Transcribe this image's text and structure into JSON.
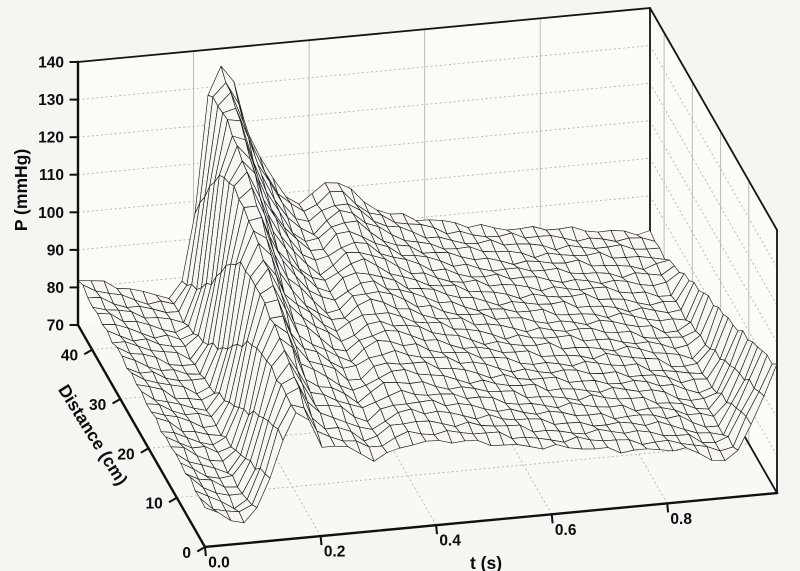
{
  "page": {
    "background": "#f5f5f2"
  },
  "chart_data": {
    "type": "surface",
    "wireframe": true,
    "title": "",
    "xlabel": "t (s)",
    "ylabel": "Distance (cm)",
    "zlabel": "P (mmHg)",
    "x_range": [
      0,
      0.99
    ],
    "y_range": [
      0,
      45
    ],
    "z_range": [
      70,
      140
    ],
    "x_ticks": [
      0,
      0.2,
      0.4,
      0.6,
      0.8
    ],
    "x_tick_labels": [
      "0.0",
      "0.2",
      "0.4",
      "0.6",
      "0.8"
    ],
    "y_ticks": [
      0,
      10,
      20,
      30,
      40
    ],
    "y_tick_labels": [
      "0",
      "10",
      "20",
      "30",
      "40"
    ],
    "z_ticks": [
      70,
      80,
      90,
      100,
      110,
      120,
      130,
      140
    ],
    "z_tick_labels": [
      "70",
      "80",
      "90",
      "100",
      "110",
      "120",
      "130",
      "140"
    ],
    "grid": true,
    "legend": false,
    "mesh": {
      "cols": 45,
      "rows": 27,
      "noise_mmHg": 0.9
    },
    "colors": {
      "mesh_line": "#1a1a1a",
      "cell_fill": "#f7f6f2",
      "grid_line": "#b4b4af",
      "edge": "#141414",
      "axis": "#101010",
      "text": "#0c0c0c",
      "wall_fill": "#fbfbf8",
      "floor_fill": "#f8f8f4"
    },
    "series": [
      {
        "distance_cm": 0,
        "points": [
          [
            0,
            80.5
          ],
          [
            0.045,
            76.3
          ],
          [
            0.075,
            75.6
          ],
          [
            0.105,
            84.0
          ],
          [
            0.135,
            97.0
          ],
          [
            0.163,
            104.0
          ],
          [
            0.205,
            94.0
          ],
          [
            0.25,
            92.5
          ],
          [
            0.295,
            89.0
          ],
          [
            0.35,
            92.5
          ],
          [
            0.5,
            90.3
          ],
          [
            0.62,
            87.3
          ],
          [
            0.74,
            85.2
          ],
          [
            0.84,
            83.2
          ],
          [
            0.905,
            79.8
          ],
          [
            0.95,
            91.0
          ],
          [
            0.99,
            103.5
          ]
        ]
      },
      {
        "distance_cm": 5,
        "points": [
          [
            0,
            80.7
          ],
          [
            0.055,
            76.3
          ],
          [
            0.085,
            75.6
          ],
          [
            0.115,
            84.4
          ],
          [
            0.145,
            99.5
          ],
          [
            0.173,
            106.5
          ],
          [
            0.215,
            95.6
          ],
          [
            0.26,
            93.7
          ],
          [
            0.305,
            89.9
          ],
          [
            0.36,
            93.6
          ],
          [
            0.5,
            90.8
          ],
          [
            0.62,
            87.4
          ],
          [
            0.74,
            85.2
          ],
          [
            0.84,
            83.2
          ],
          [
            0.915,
            79.8
          ],
          [
            0.955,
            89.5
          ],
          [
            0.99,
            100.8
          ]
        ]
      },
      {
        "distance_cm": 10,
        "points": [
          [
            0,
            80.9
          ],
          [
            0.065,
            76.3
          ],
          [
            0.095,
            75.6
          ],
          [
            0.125,
            84.9
          ],
          [
            0.155,
            102.5
          ],
          [
            0.183,
            109.5
          ],
          [
            0.225,
            97.7
          ],
          [
            0.27,
            94.9
          ],
          [
            0.315,
            90.8
          ],
          [
            0.37,
            94.6
          ],
          [
            0.5,
            91.3
          ],
          [
            0.62,
            87.6
          ],
          [
            0.74,
            85.2
          ],
          [
            0.84,
            83.2
          ],
          [
            0.925,
            79.8
          ],
          [
            0.96,
            87.5
          ],
          [
            0.99,
            98.0
          ]
        ]
      },
      {
        "distance_cm": 15,
        "points": [
          [
            0,
            81.1
          ],
          [
            0.075,
            76.3
          ],
          [
            0.105,
            75.6
          ],
          [
            0.135,
            85.3
          ],
          [
            0.165,
            106.0
          ],
          [
            0.193,
            113.0
          ],
          [
            0.235,
            100.3
          ],
          [
            0.28,
            96.2
          ],
          [
            0.325,
            91.7
          ],
          [
            0.38,
            95.7
          ],
          [
            0.5,
            91.9
          ],
          [
            0.62,
            87.7
          ],
          [
            0.74,
            85.2
          ],
          [
            0.84,
            83.2
          ],
          [
            0.935,
            79.8
          ],
          [
            0.965,
            85.5
          ],
          [
            0.99,
            95.0
          ]
        ]
      },
      {
        "distance_cm": 20,
        "points": [
          [
            0,
            81.3
          ],
          [
            0.085,
            76.3
          ],
          [
            0.115,
            75.6
          ],
          [
            0.145,
            85.8
          ],
          [
            0.175,
            109.5
          ],
          [
            0.203,
            116.5
          ],
          [
            0.245,
            102.9
          ],
          [
            0.29,
            97.4
          ],
          [
            0.335,
            92.6
          ],
          [
            0.39,
            96.7
          ],
          [
            0.5,
            92.4
          ],
          [
            0.62,
            87.8
          ],
          [
            0.74,
            85.2
          ],
          [
            0.84,
            83.2
          ],
          [
            0.945,
            79.8
          ],
          [
            0.97,
            84.0
          ],
          [
            0.99,
            92.2
          ]
        ]
      },
      {
        "distance_cm": 25,
        "points": [
          [
            0,
            81.5
          ],
          [
            0.095,
            76.3
          ],
          [
            0.125,
            75.6
          ],
          [
            0.155,
            86.2
          ],
          [
            0.185,
            113.5
          ],
          [
            0.213,
            120.5
          ],
          [
            0.255,
            106.1
          ],
          [
            0.3,
            98.6
          ],
          [
            0.345,
            93.4
          ],
          [
            0.4,
            97.8
          ],
          [
            0.5,
            92.9
          ],
          [
            0.62,
            88.0
          ],
          [
            0.74,
            85.2
          ],
          [
            0.84,
            83.2
          ],
          [
            0.955,
            79.9
          ],
          [
            0.99,
            89.4
          ]
        ]
      },
      {
        "distance_cm": 30,
        "points": [
          [
            0,
            81.7
          ],
          [
            0.105,
            76.3
          ],
          [
            0.135,
            75.6
          ],
          [
            0.165,
            86.7
          ],
          [
            0.195,
            117.5
          ],
          [
            0.223,
            124.5
          ],
          [
            0.265,
            109.2
          ],
          [
            0.31,
            99.8
          ],
          [
            0.355,
            94.3
          ],
          [
            0.41,
            98.8
          ],
          [
            0.5,
            93.4
          ],
          [
            0.62,
            88.1
          ],
          [
            0.74,
            85.2
          ],
          [
            0.84,
            83.2
          ],
          [
            0.965,
            80.0
          ],
          [
            0.99,
            86.6
          ]
        ]
      },
      {
        "distance_cm": 35,
        "points": [
          [
            0,
            81.9
          ],
          [
            0.115,
            76.3
          ],
          [
            0.145,
            75.6
          ],
          [
            0.175,
            87.1
          ],
          [
            0.205,
            121.5
          ],
          [
            0.233,
            128.5
          ],
          [
            0.275,
            112.3
          ],
          [
            0.32,
            101.1
          ],
          [
            0.365,
            95.2
          ],
          [
            0.42,
            99.9
          ],
          [
            0.5,
            94.0
          ],
          [
            0.62,
            88.2
          ],
          [
            0.74,
            85.2
          ],
          [
            0.84,
            83.2
          ],
          [
            0.975,
            80.4
          ],
          [
            0.99,
            83.8
          ]
        ]
      },
      {
        "distance_cm": 40,
        "points": [
          [
            0,
            82.1
          ],
          [
            0.125,
            76.3
          ],
          [
            0.155,
            75.6
          ],
          [
            0.185,
            87.6
          ],
          [
            0.215,
            125.0
          ],
          [
            0.243,
            132.0
          ],
          [
            0.285,
            114.9
          ],
          [
            0.33,
            102.3
          ],
          [
            0.375,
            96.1
          ],
          [
            0.43,
            100.9
          ],
          [
            0.5,
            94.5
          ],
          [
            0.62,
            88.4
          ],
          [
            0.74,
            85.2
          ],
          [
            0.84,
            83.2
          ],
          [
            0.92,
            81.6
          ],
          [
            0.99,
            80.6
          ]
        ]
      },
      {
        "distance_cm": 45,
        "points": [
          [
            0,
            82.3
          ],
          [
            0.135,
            76.3
          ],
          [
            0.165,
            75.6
          ],
          [
            0.195,
            88.0
          ],
          [
            0.225,
            128.0
          ],
          [
            0.253,
            135.0
          ],
          [
            0.295,
            117.0
          ],
          [
            0.34,
            103.5
          ],
          [
            0.385,
            97.0
          ],
          [
            0.44,
            102.0
          ],
          [
            0.5,
            95.0
          ],
          [
            0.62,
            88.5
          ],
          [
            0.74,
            85.2
          ],
          [
            0.84,
            83.2
          ],
          [
            0.92,
            81.8
          ],
          [
            0.99,
            80.2
          ]
        ]
      }
    ]
  }
}
